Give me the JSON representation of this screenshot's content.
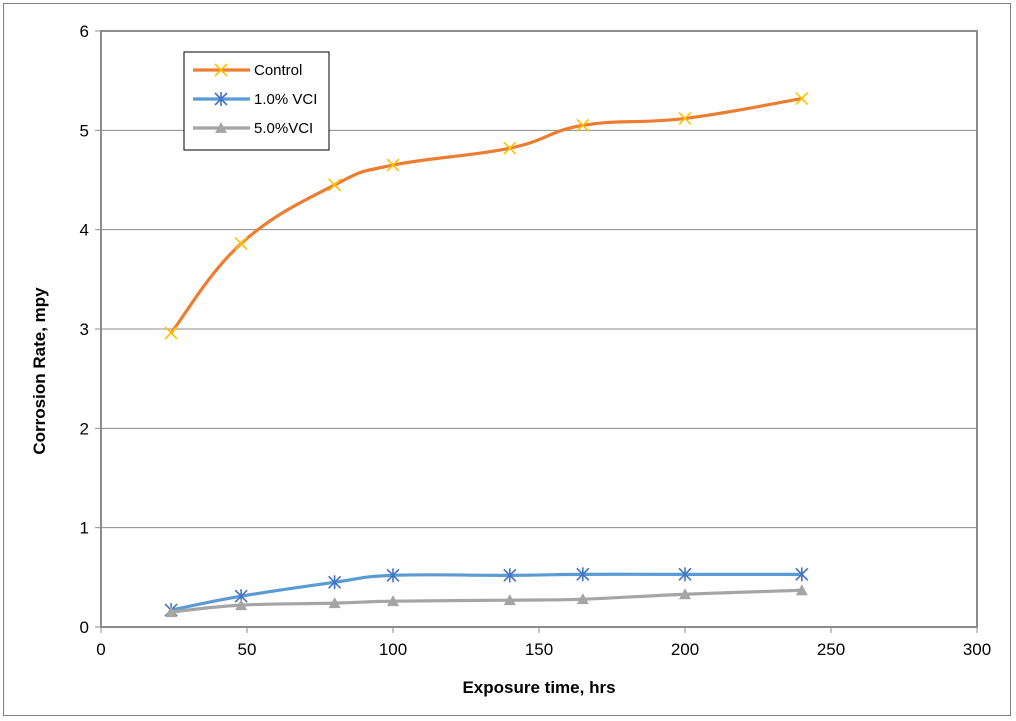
{
  "chart_data": {
    "type": "line",
    "title": "",
    "xlabel": "Exposure time, hrs",
    "ylabel": "Corrosion Rate, mpy",
    "xlim": [
      0,
      300
    ],
    "ylim": [
      0,
      6
    ],
    "xticks": [
      "0",
      "50",
      "100",
      "150",
      "200",
      "250",
      "300"
    ],
    "yticks": [
      "0",
      "1",
      "2",
      "3",
      "4",
      "5",
      "6"
    ],
    "grid": "horizontal",
    "legend_position": "top-left",
    "x": [
      24,
      48,
      80,
      100,
      140,
      165,
      200,
      240
    ],
    "series": [
      {
        "name": "Control",
        "color": "#ed7d31",
        "marker": "x",
        "marker_color": "#ffc000",
        "values": [
          2.96,
          3.86,
          4.45,
          4.65,
          4.82,
          5.05,
          5.12,
          5.32
        ]
      },
      {
        "name": "1.0% VCI",
        "color": "#5b9bd5",
        "marker": "asterisk",
        "marker_color": "#4472c4",
        "values": [
          0.17,
          0.31,
          0.45,
          0.52,
          0.52,
          0.53,
          0.53,
          0.53
        ]
      },
      {
        "name": "5.0%VCI",
        "color": "#a5a5a5",
        "marker": "triangle",
        "marker_color": "#a5a5a5",
        "values": [
          0.15,
          0.22,
          0.24,
          0.26,
          0.27,
          0.28,
          0.33,
          0.37
        ]
      }
    ]
  }
}
